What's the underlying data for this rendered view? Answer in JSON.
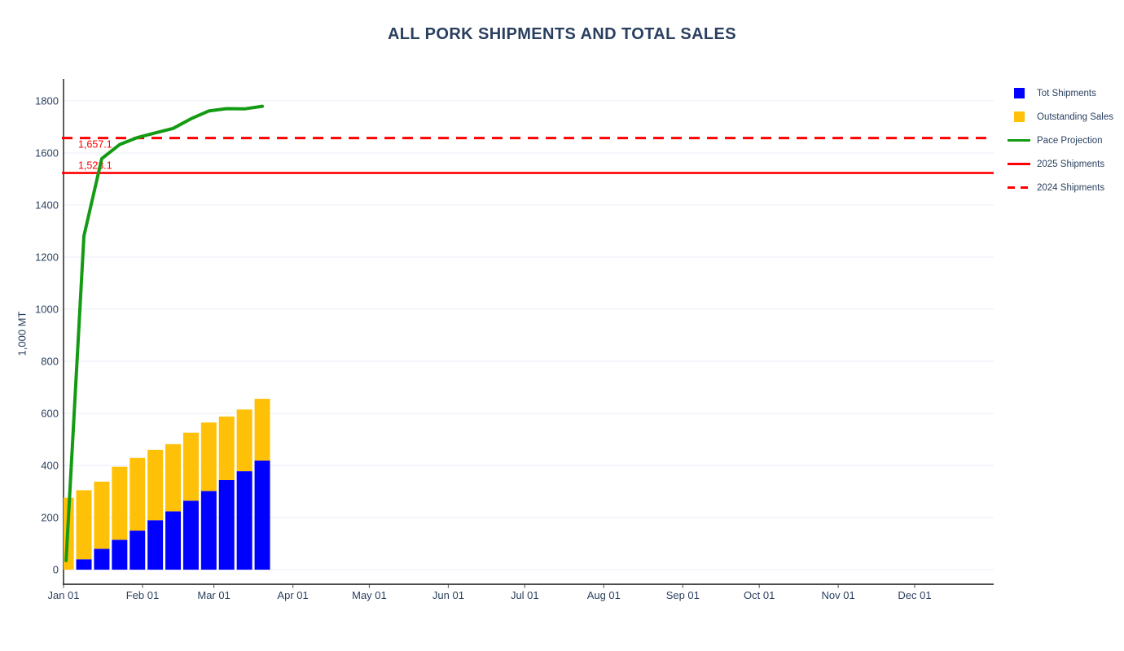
{
  "chart_data": {
    "type": "bar",
    "title": "ALL PORK SHIPMENTS AND TOTAL SALES",
    "ylabel": "1,000 MT",
    "x_axis": {
      "tick_labels": [
        "Jan 01",
        "Feb 01",
        "Mar 01",
        "Apr 01",
        "May 01",
        "Jun 01",
        "Jul 01",
        "Aug 01",
        "Sep 01",
        "Oct 01",
        "Nov 01",
        "Dec 01"
      ],
      "tick_days": [
        1,
        32,
        60,
        91,
        121,
        152,
        182,
        213,
        244,
        274,
        305,
        335
      ],
      "range_days": [
        1,
        366
      ]
    },
    "y_axis": {
      "ticks": [
        0,
        200,
        400,
        600,
        800,
        1000,
        1200,
        1400,
        1600,
        1800
      ],
      "range": [
        -56,
        1884
      ],
      "grid": true
    },
    "weeks_day_of_year": [
      2,
      9,
      16,
      23,
      30,
      37,
      44,
      51,
      58,
      65,
      72,
      79
    ],
    "series": [
      {
        "name": "Tot Shipments",
        "type": "bar",
        "stack_order": 1,
        "color": "#0000ff",
        "values": [
          0,
          40,
          80,
          115,
          150,
          190,
          224,
          265,
          302,
          344,
          378,
          419
        ]
      },
      {
        "name": "Outstanding Sales",
        "type": "bar",
        "stack_order": 2,
        "color": "#ffc107",
        "values": [
          276,
          265,
          258,
          280,
          279,
          270,
          258,
          261,
          263,
          244,
          237,
          237
        ]
      },
      {
        "name": "Pace Projection",
        "type": "line",
        "color": "#149b14",
        "values": [
          35,
          1281,
          1578,
          1632,
          1659,
          1677,
          1694,
          1731,
          1761,
          1770,
          1769,
          1779
        ]
      },
      {
        "name": "2025 Shipments",
        "type": "hline",
        "style": "solid",
        "color": "#ff0000",
        "value": 1523.1,
        "annotation": "1,523.1",
        "annotation_side": "above"
      },
      {
        "name": "2024 Shipments",
        "type": "hline",
        "style": "dashed",
        "color": "#ff0000",
        "value": 1657.1,
        "annotation": "1,657.1",
        "annotation_side": "below"
      }
    ],
    "legend_position": "right",
    "colors": {
      "text": "#2a3f5f",
      "grid": "#e9eef7",
      "axis_line": "#333333",
      "background": "#ffffff"
    }
  }
}
